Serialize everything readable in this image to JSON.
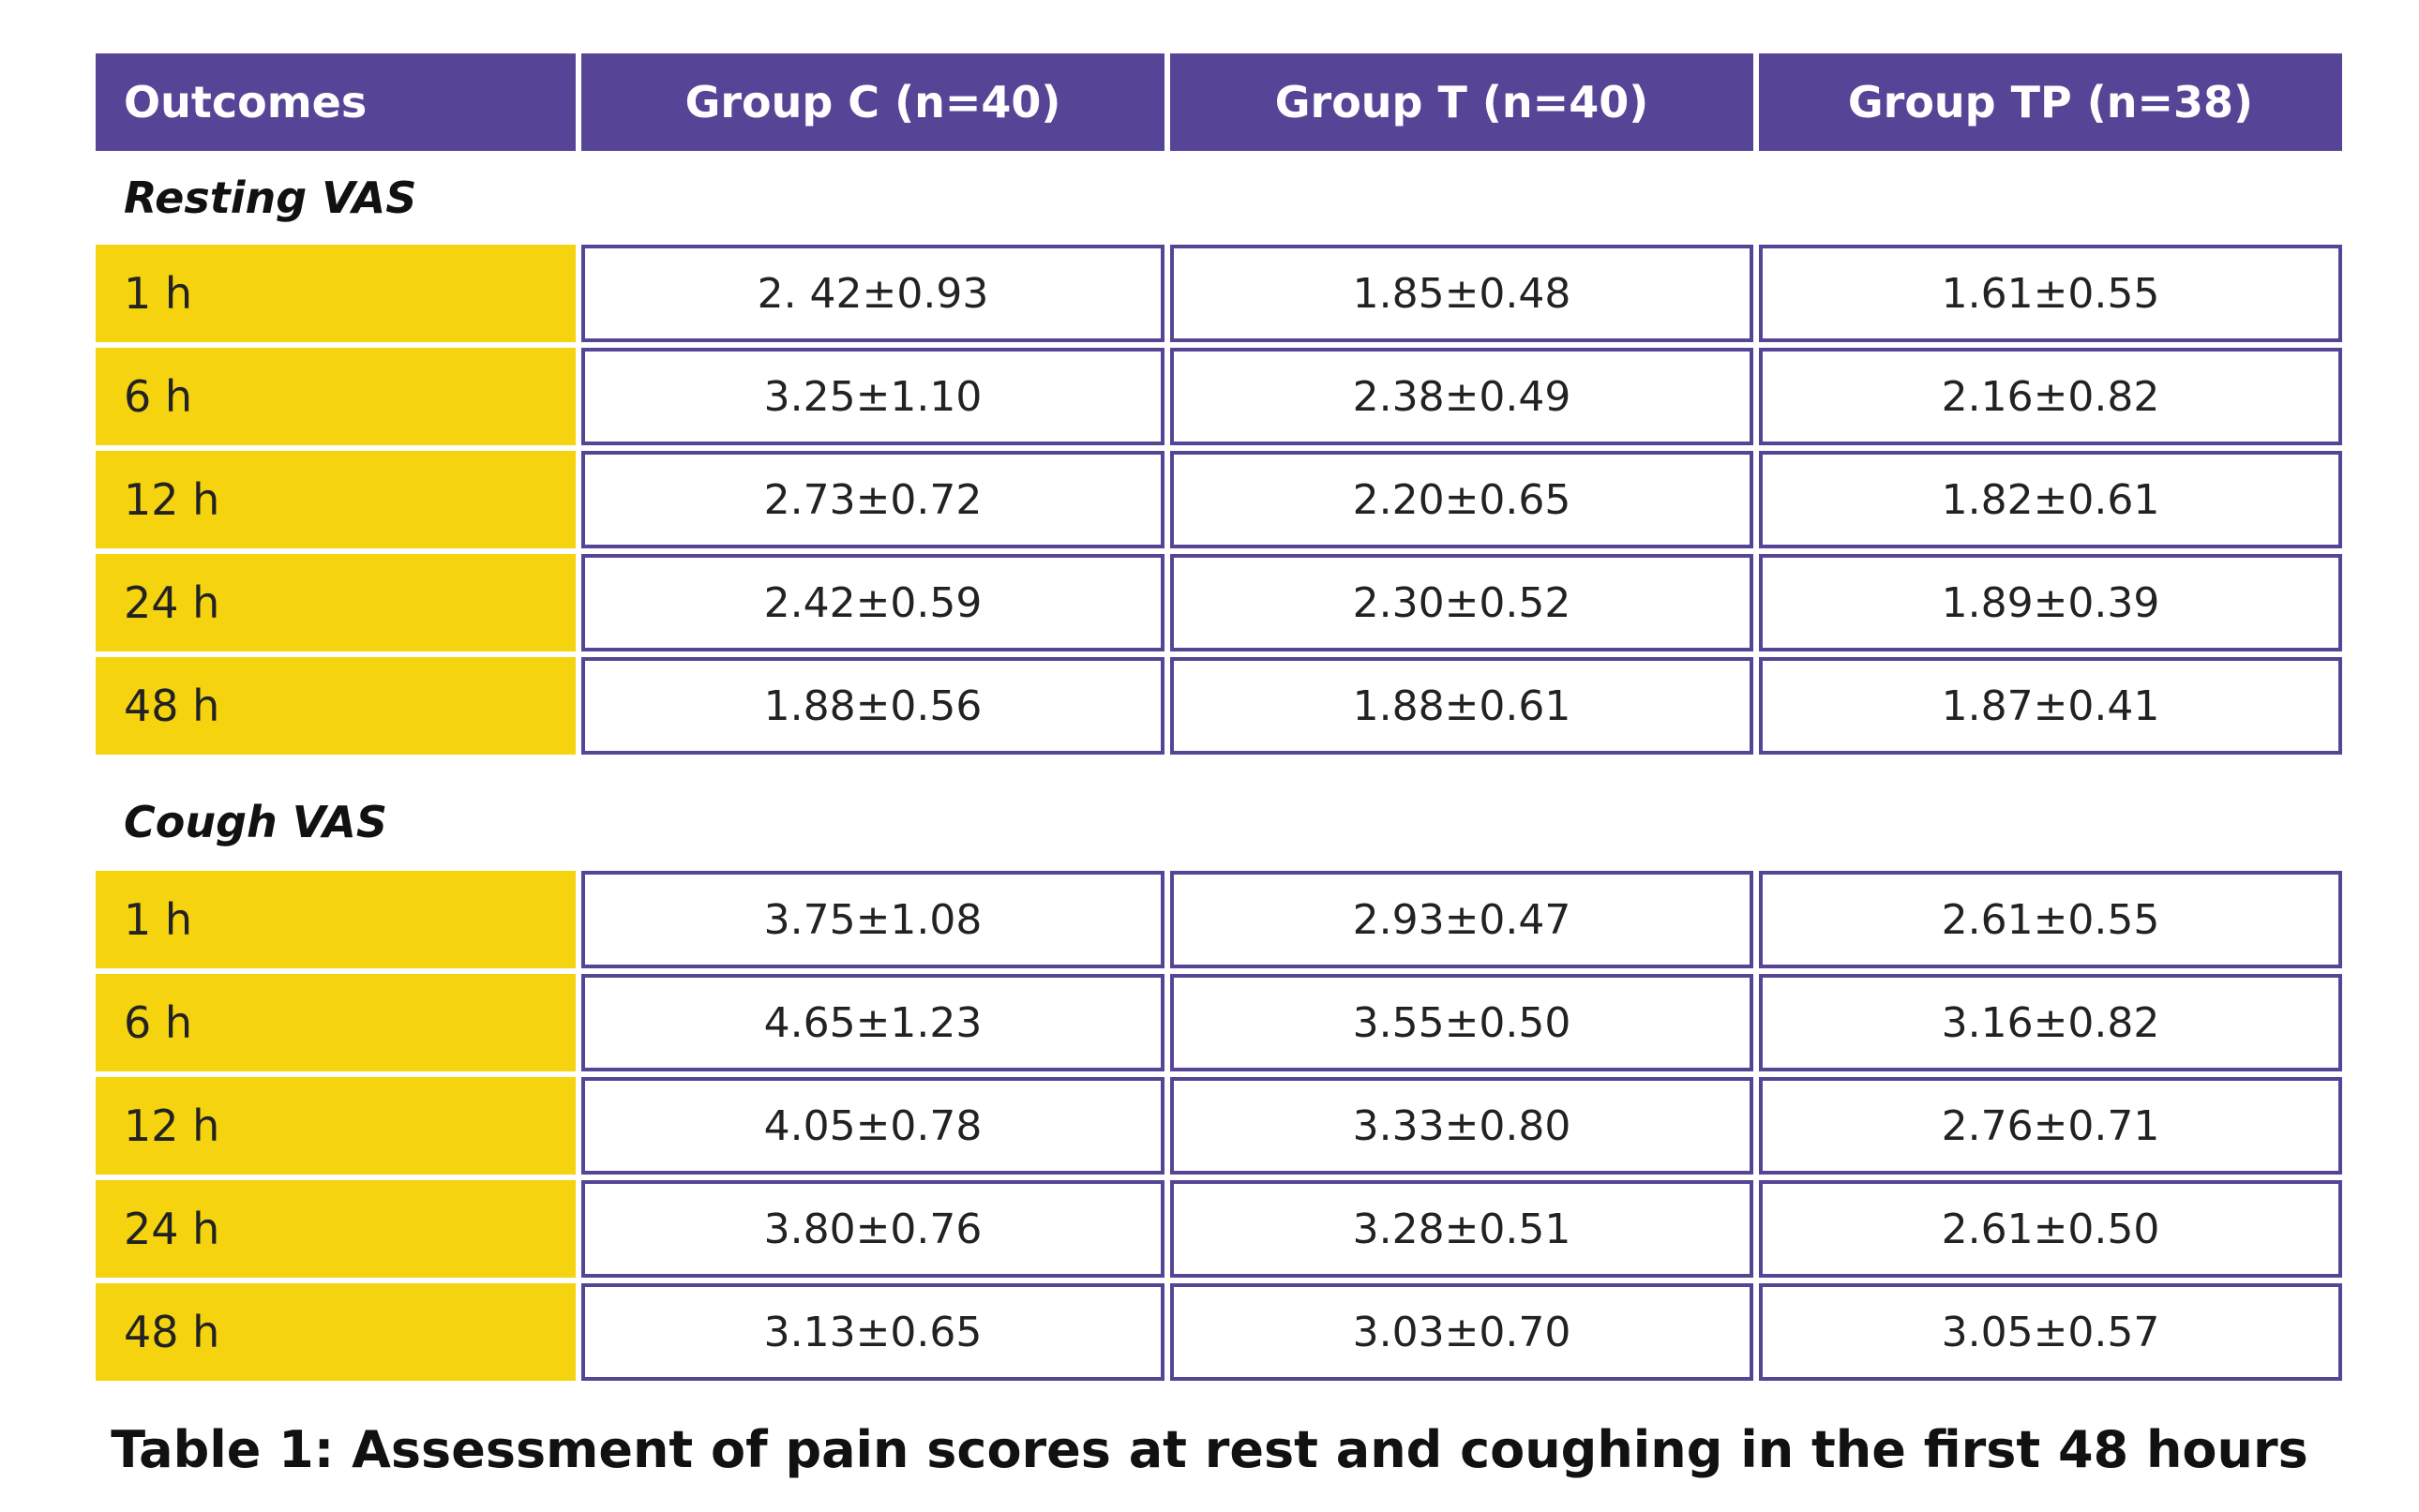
{
  "table": {
    "headers": [
      "Outcomes",
      "Group C (n=40)",
      "Group T (n=40)",
      "Group TP (n=38)"
    ],
    "sections": [
      {
        "label": "Resting VAS",
        "rows": [
          {
            "time": "1 h",
            "values": [
              "2. 42±0.93",
              "1.85±0.48",
              "1.61±0.55"
            ]
          },
          {
            "time": "6 h",
            "values": [
              "3.25±1.10",
              "2.38±0.49",
              "2.16±0.82"
            ]
          },
          {
            "time": "12 h",
            "values": [
              "2.73±0.72",
              "2.20±0.65",
              "1.82±0.61"
            ]
          },
          {
            "time": "24 h",
            "values": [
              "2.42±0.59",
              "2.30±0.52",
              "1.89±0.39"
            ]
          },
          {
            "time": "48 h",
            "values": [
              "1.88±0.56",
              "1.88±0.61",
              "1.87±0.41"
            ]
          }
        ]
      },
      {
        "label": "Cough VAS",
        "rows": [
          {
            "time": "1 h",
            "values": [
              "3.75±1.08",
              "2.93±0.47",
              "2.61±0.55"
            ]
          },
          {
            "time": "6 h",
            "values": [
              "4.65±1.23",
              "3.55±0.50",
              "3.16±0.82"
            ]
          },
          {
            "time": "12 h",
            "values": [
              "4.05±0.78",
              "3.33±0.80",
              "2.76±0.71"
            ]
          },
          {
            "time": "24 h",
            "values": [
              "3.80±0.76",
              "3.28±0.51",
              "2.61±0.50"
            ]
          },
          {
            "time": "48 h",
            "values": [
              "3.13±0.65",
              "3.03±0.70",
              "3.05±0.57"
            ]
          }
        ]
      }
    ]
  },
  "caption": "Table 1: Assessment of pain scores at rest and coughing in the first 48 hours",
  "colors": {
    "header_bg": "#564596",
    "time_bg": "#f5d30f",
    "border": "#564596"
  }
}
